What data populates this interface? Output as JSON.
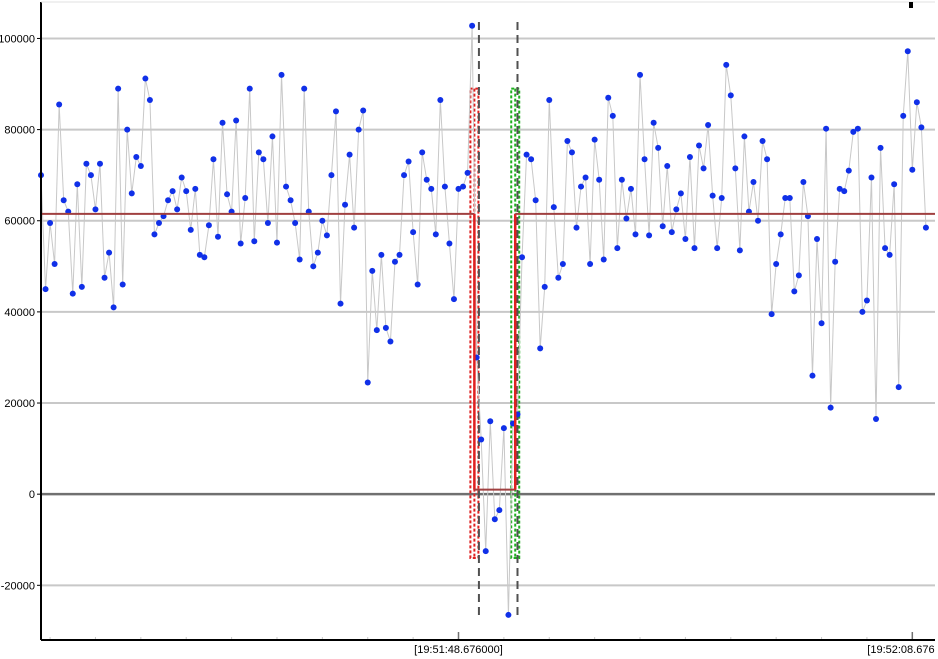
{
  "chart_data": {
    "type": "line",
    "title": "",
    "xlabel": "",
    "ylabel": "",
    "ylim": [
      -32000,
      108000
    ],
    "grid": true,
    "y_ticks": [
      -20000,
      0,
      20000,
      40000,
      60000,
      80000,
      100000
    ],
    "y_tick_labels": [
      "-20000",
      "0",
      "20000",
      "40000",
      "60000",
      "80000",
      "100000"
    ],
    "x_tick_labels": [
      "[19:51:48.676000]",
      "[19:52:08.676"
    ],
    "x_tick_positions": [
      92,
      192
    ],
    "xlim": [
      0,
      197
    ],
    "series": [
      {
        "values": [
          70000,
          45000,
          59500,
          50500,
          85500,
          64500,
          62000,
          44000,
          68000,
          45500,
          72500,
          70000,
          62500,
          72500,
          47500,
          53000,
          41000,
          89000,
          46000,
          80000,
          66000,
          74000,
          72000,
          91200,
          86500,
          57000,
          59500,
          61000,
          64500,
          66500,
          62500,
          69500,
          66500,
          58000,
          67000,
          52500,
          52000,
          59000,
          73500,
          56500,
          81500,
          65800,
          62000,
          82000,
          55000,
          65000,
          89000,
          55500,
          75000,
          73500,
          59500,
          78500,
          55200,
          92000,
          67500,
          64500,
          59500,
          51500,
          89000,
          62000,
          50000,
          53000,
          60000,
          56800,
          70000,
          84000,
          41800,
          63500,
          74500,
          58500,
          80000,
          84200,
          24500,
          49000,
          36000,
          52500,
          36500,
          33500,
          51000,
          52500,
          70000,
          73000,
          57500,
          46000,
          75000,
          69000,
          67000,
          57000,
          86500,
          67500,
          55000,
          42800,
          67000,
          67500,
          70500,
          102800,
          30000,
          12000,
          -12500,
          16000,
          -5500,
          -3500,
          14500,
          -26500,
          15500,
          17500,
          52000,
          74500,
          73500,
          64500,
          32000,
          45500,
          86500,
          63000,
          47500,
          50500,
          77500,
          75000,
          58500,
          67500,
          69500,
          50500,
          77800,
          69000,
          51500,
          87000,
          83000,
          54000,
          69000,
          60500,
          67000,
          57000,
          92000,
          73500,
          56800,
          81500,
          76000,
          58800,
          72000,
          57500,
          62500,
          66000,
          56000,
          74000,
          54000,
          76500,
          71500,
          81000,
          65500,
          54000,
          65000,
          94200,
          87500,
          71500,
          53500,
          78500,
          62000,
          68500,
          60000,
          77500,
          73500,
          39500,
          50500,
          57000,
          65000,
          65000,
          44500,
          48000,
          68500,
          61000,
          26000,
          56000,
          37500,
          80200,
          19000,
          51000,
          67000,
          66500,
          71000,
          79500,
          80200,
          40000,
          42500,
          69500,
          16500,
          76000,
          54000,
          52500,
          68000,
          23500,
          83000,
          97200,
          71200,
          86000,
          80500,
          58500
        ]
      },
      {
        "segments": [
          {
            "x0": 0,
            "x1": 95.5,
            "y": 61500
          },
          {
            "x0": 95.5,
            "x1": 104.5,
            "y": 1000
          },
          {
            "x0": 104.5,
            "x1": 197,
            "y": 61500
          }
        ]
      }
    ],
    "markers": [
      {
        "x": 96.5,
        "style": "dashed-vertical"
      },
      {
        "x": 105.0,
        "style": "dashed-vertical"
      }
    ],
    "highlight_bands": [
      {
        "x_center": 95.5,
        "ymin": -14000,
        "ymax": 89000
      },
      {
        "x_center": 104.5,
        "ymin": -14000,
        "ymax": 89000
      }
    ],
    "colors": {
      "points": "#1030e8",
      "point_line": "#c8c8c8",
      "baseline": "#a04040",
      "step_segment": "#e02020",
      "band_left": "#e02020",
      "band_right": "#20b020",
      "marker": "#505050",
      "grid": "#c8c8c8",
      "zero_line": "#707070",
      "axis": "#000000"
    }
  }
}
